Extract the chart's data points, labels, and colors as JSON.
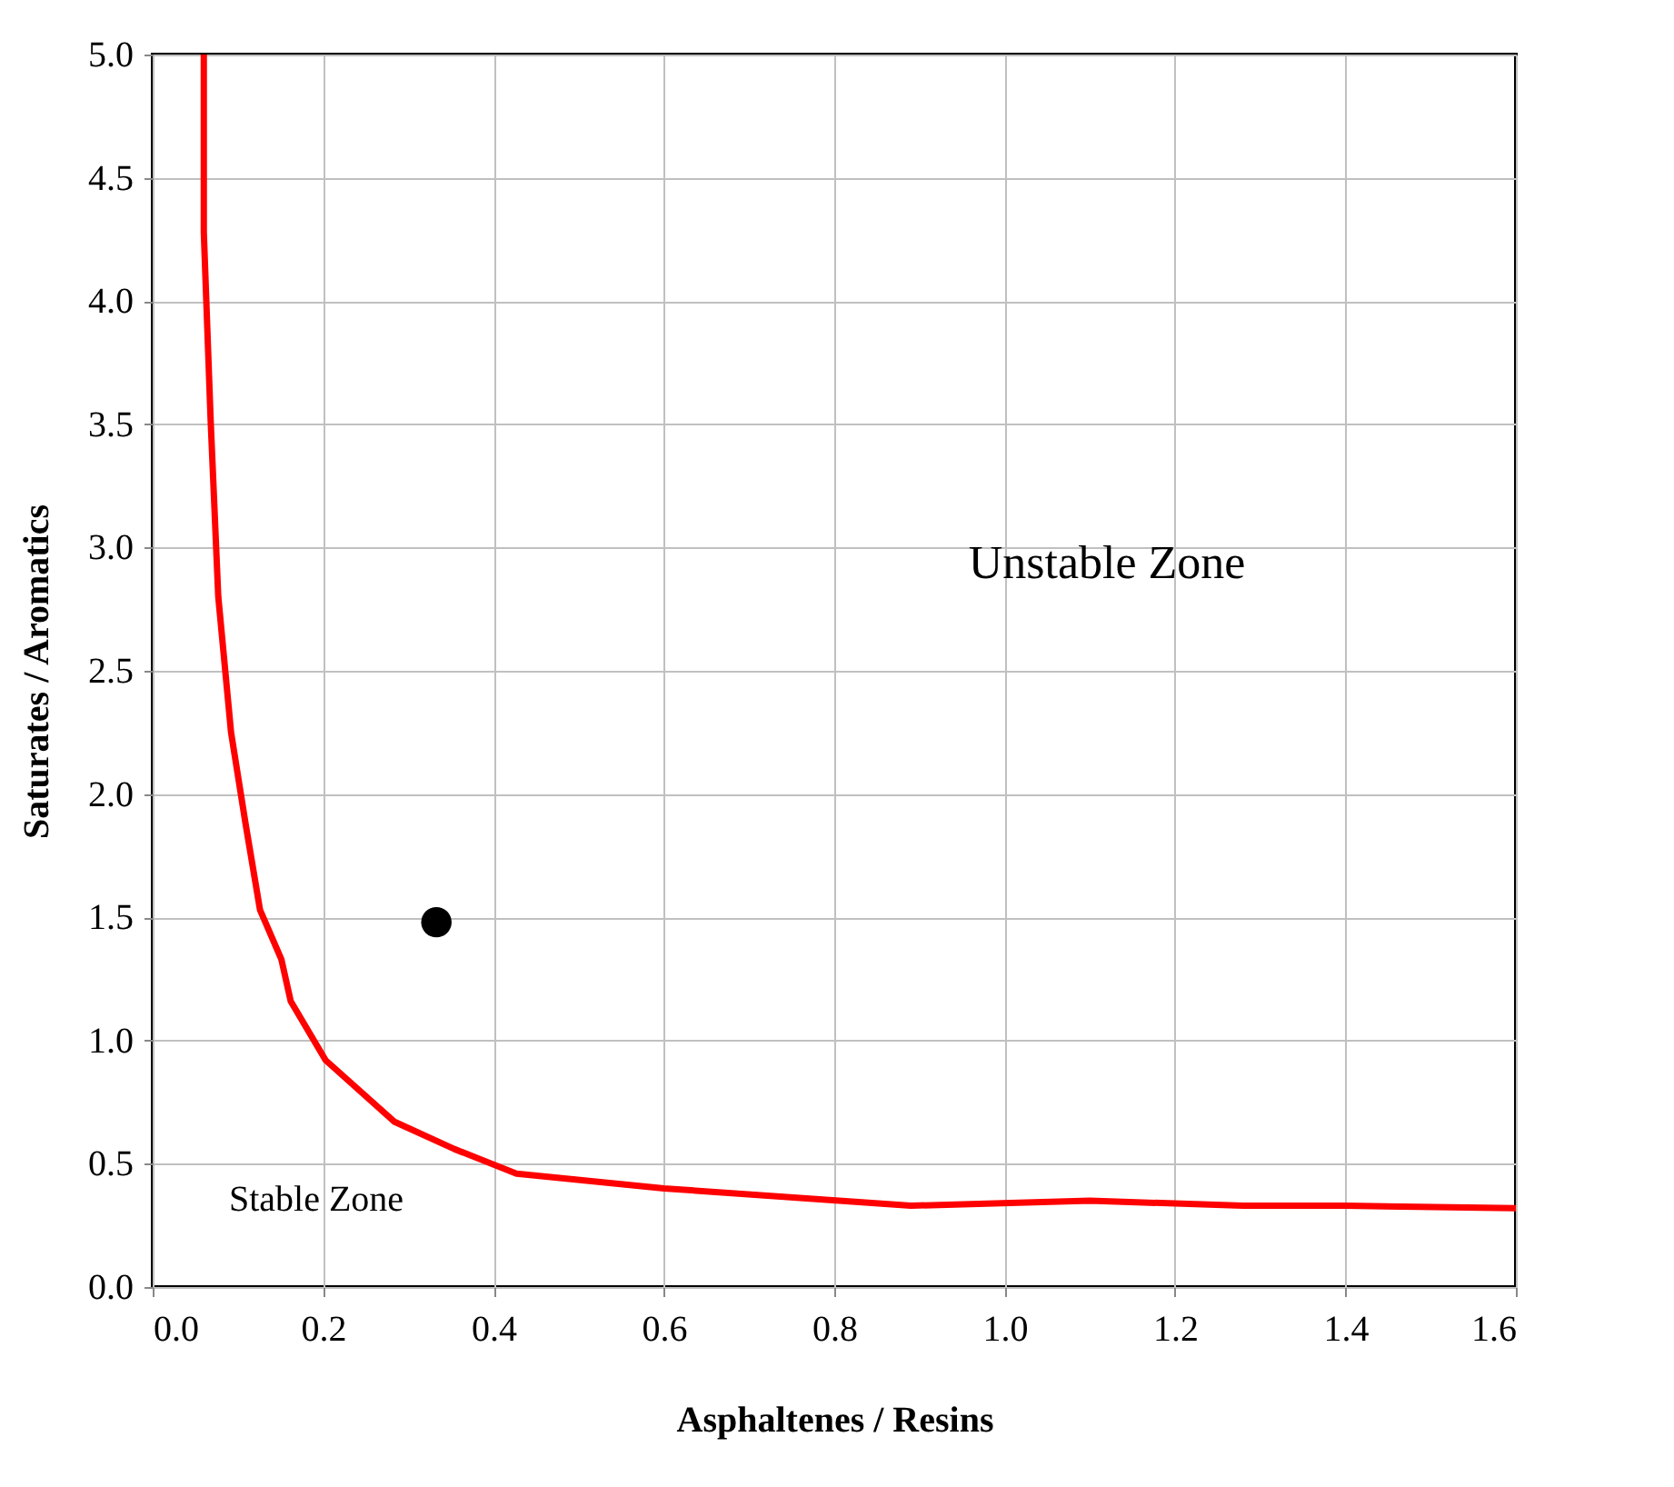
{
  "chart_data": {
    "type": "line",
    "xlabel": "Asphaltenes / Resins",
    "ylabel": "Saturates / Aromatics",
    "xlim": [
      0,
      1.6
    ],
    "ylim": [
      0,
      5
    ],
    "xticks": [
      {
        "value": 0,
        "label": "0.0"
      },
      0.2,
      0.4,
      0.6,
      0.8,
      {
        "value": 1,
        "label": "1.0"
      },
      1.2,
      1.4,
      1.6
    ],
    "yticks": [
      {
        "value": 0,
        "label": "0.0"
      },
      0.5,
      {
        "value": 1,
        "label": "1.0"
      },
      1.5,
      {
        "value": 2,
        "label": "2.0"
      },
      2.5,
      {
        "value": 3,
        "label": "3.0"
      },
      3.5,
      {
        "value": 4,
        "label": "4.0"
      },
      4.5,
      {
        "value": 5,
        "label": "5.0"
      }
    ],
    "grid": true,
    "series": [
      {
        "color": "#ff0000",
        "x": [
          0.06,
          0.06,
          0.068,
          0.077,
          0.092,
          0.109,
          0.126,
          0.151,
          0.162,
          0.203,
          0.284,
          0.354,
          0.427,
          0.6,
          0.89,
          1.1,
          1.28,
          1.4,
          1.6
        ],
        "values": [
          5.0,
          4.28,
          3.52,
          2.8,
          2.25,
          1.88,
          1.53,
          1.33,
          1.16,
          0.92,
          0.67,
          0.56,
          0.46,
          0.4,
          0.33,
          0.35,
          0.33,
          0.33,
          0.32
        ]
      },
      {
        "type": "scatter",
        "color": "#000000",
        "marker": "circle",
        "x": [
          0.333
        ],
        "values": [
          1.48
        ]
      }
    ],
    "annotations": [
      "Unstable Zone",
      "Stable Zone"
    ]
  }
}
